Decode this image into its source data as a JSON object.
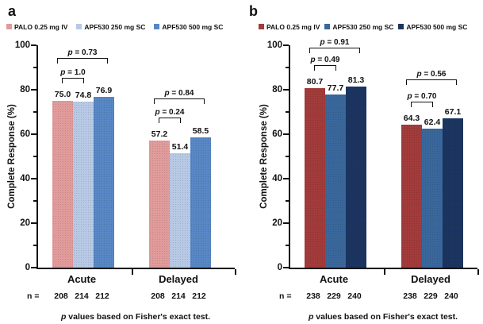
{
  "chart_data": [
    {
      "type": "bar",
      "panel_label": "a",
      "ylabel": "Complete Response (%)",
      "ylim": [
        0,
        100
      ],
      "yticks": [
        0,
        20,
        40,
        60,
        80,
        100
      ],
      "minor_tick_step": 10,
      "grid": false,
      "legend_position": "top",
      "categories": [
        "Acute",
        "Delayed"
      ],
      "series": [
        {
          "name": "PALO 0.25 mg IV",
          "color": "#E19B9B",
          "values": [
            75.0,
            57.2
          ]
        },
        {
          "name": "APF530 250 mg SC",
          "color": "#B7C9E5",
          "values": [
            74.8,
            51.4
          ]
        },
        {
          "name": "APF530 500 mg SC",
          "color": "#5787C4",
          "values": [
            76.9,
            58.5
          ]
        }
      ],
      "value_labels": [
        [
          "75.0",
          "74.8",
          "76.9"
        ],
        [
          "57.2",
          "51.4",
          "58.5"
        ]
      ],
      "p_values": [
        {
          "inner": "p = 1.0",
          "outer": "p = 0.73"
        },
        {
          "inner": "p = 0.24",
          "outer": "p = 0.84"
        }
      ],
      "n_prefix": "n =",
      "n_values": [
        [
          "208",
          "214",
          "212"
        ],
        [
          "208",
          "214",
          "212"
        ]
      ],
      "footnote": "p values based on Fisher's exact test."
    },
    {
      "type": "bar",
      "panel_label": "b",
      "ylabel": "Complete Response (%)",
      "ylim": [
        0,
        100
      ],
      "yticks": [
        0,
        20,
        40,
        60,
        80,
        100
      ],
      "minor_tick_step": 10,
      "grid": false,
      "legend_position": "top",
      "categories": [
        "Acute",
        "Delayed"
      ],
      "series": [
        {
          "name": "PALO 0.25 mg IV",
          "color": "#A23B3B",
          "values": [
            80.7,
            64.3
          ]
        },
        {
          "name": "APF530 250 mg SC",
          "color": "#3A679B",
          "values": [
            77.7,
            62.4
          ]
        },
        {
          "name": "APF530 500 mg SC",
          "color": "#1C3560",
          "values": [
            81.3,
            67.1
          ]
        }
      ],
      "value_labels": [
        [
          "80.7",
          "77.7",
          "81.3"
        ],
        [
          "64.3",
          "62.4",
          "67.1"
        ]
      ],
      "p_values": [
        {
          "inner": "p = 0.49",
          "outer": "p = 0.91"
        },
        {
          "inner": "p = 0.70",
          "outer": "p = 0.56"
        }
      ],
      "n_prefix": "n =",
      "n_values": [
        [
          "238",
          "229",
          "240"
        ],
        [
          "238",
          "229",
          "240"
        ]
      ],
      "footnote": "p values based on Fisher's exact test."
    }
  ]
}
